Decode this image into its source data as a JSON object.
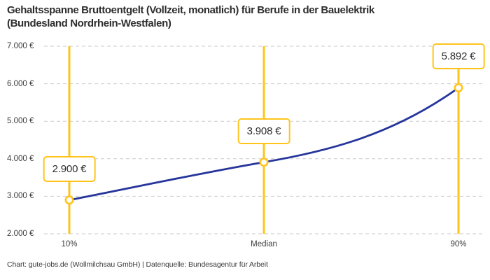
{
  "title": {
    "line1": "Gehaltsspanne Bruttoentgelt (Vollzeit, monatlich) für Berufe in der Bauelektrik",
    "line2": "(Bundesland Nordrhein-Westfalen)"
  },
  "footer": {
    "credit": "Chart: gute-jobs.de (Wollmilchsau GmbH) | Datenquelle: Bundesagentur für Arbeit"
  },
  "colors": {
    "accent_yellow": "#FFC41C",
    "line_blue": "#25359B",
    "grid_gray": "#CBCBCB",
    "text_dark": "#2D2D2D",
    "text_muted": "#3C3C3C",
    "background": "#FFFFFF"
  },
  "chart_data": {
    "type": "line",
    "title": "Gehaltsspanne Bruttoentgelt (Vollzeit, monatlich) für Berufe in der Bauelektrik (Bundesland Nordrhein-Westfalen)",
    "categories": [
      "10%",
      "Median",
      "90%"
    ],
    "values": [
      2900,
      3908,
      5892
    ],
    "point_labels": [
      "2.900 €",
      "3.908 €",
      "5.892 €"
    ],
    "ylim": [
      2000,
      7000
    ],
    "yticks": [
      {
        "value": 2000,
        "label": "2.000 €"
      },
      {
        "value": 3000,
        "label": "3.000 €"
      },
      {
        "value": 4000,
        "label": "4.000 €"
      },
      {
        "value": 5000,
        "label": "5.000 €"
      },
      {
        "value": 6000,
        "label": "6.000 €"
      },
      {
        "value": 7000,
        "label": "7.000 €"
      }
    ],
    "xlabel": "",
    "ylabel": "",
    "grid": "horizontal-dashed",
    "legend": "none",
    "marker_style": "open-circle-yellow",
    "percentile_guides": "vertical-yellow-lines"
  }
}
